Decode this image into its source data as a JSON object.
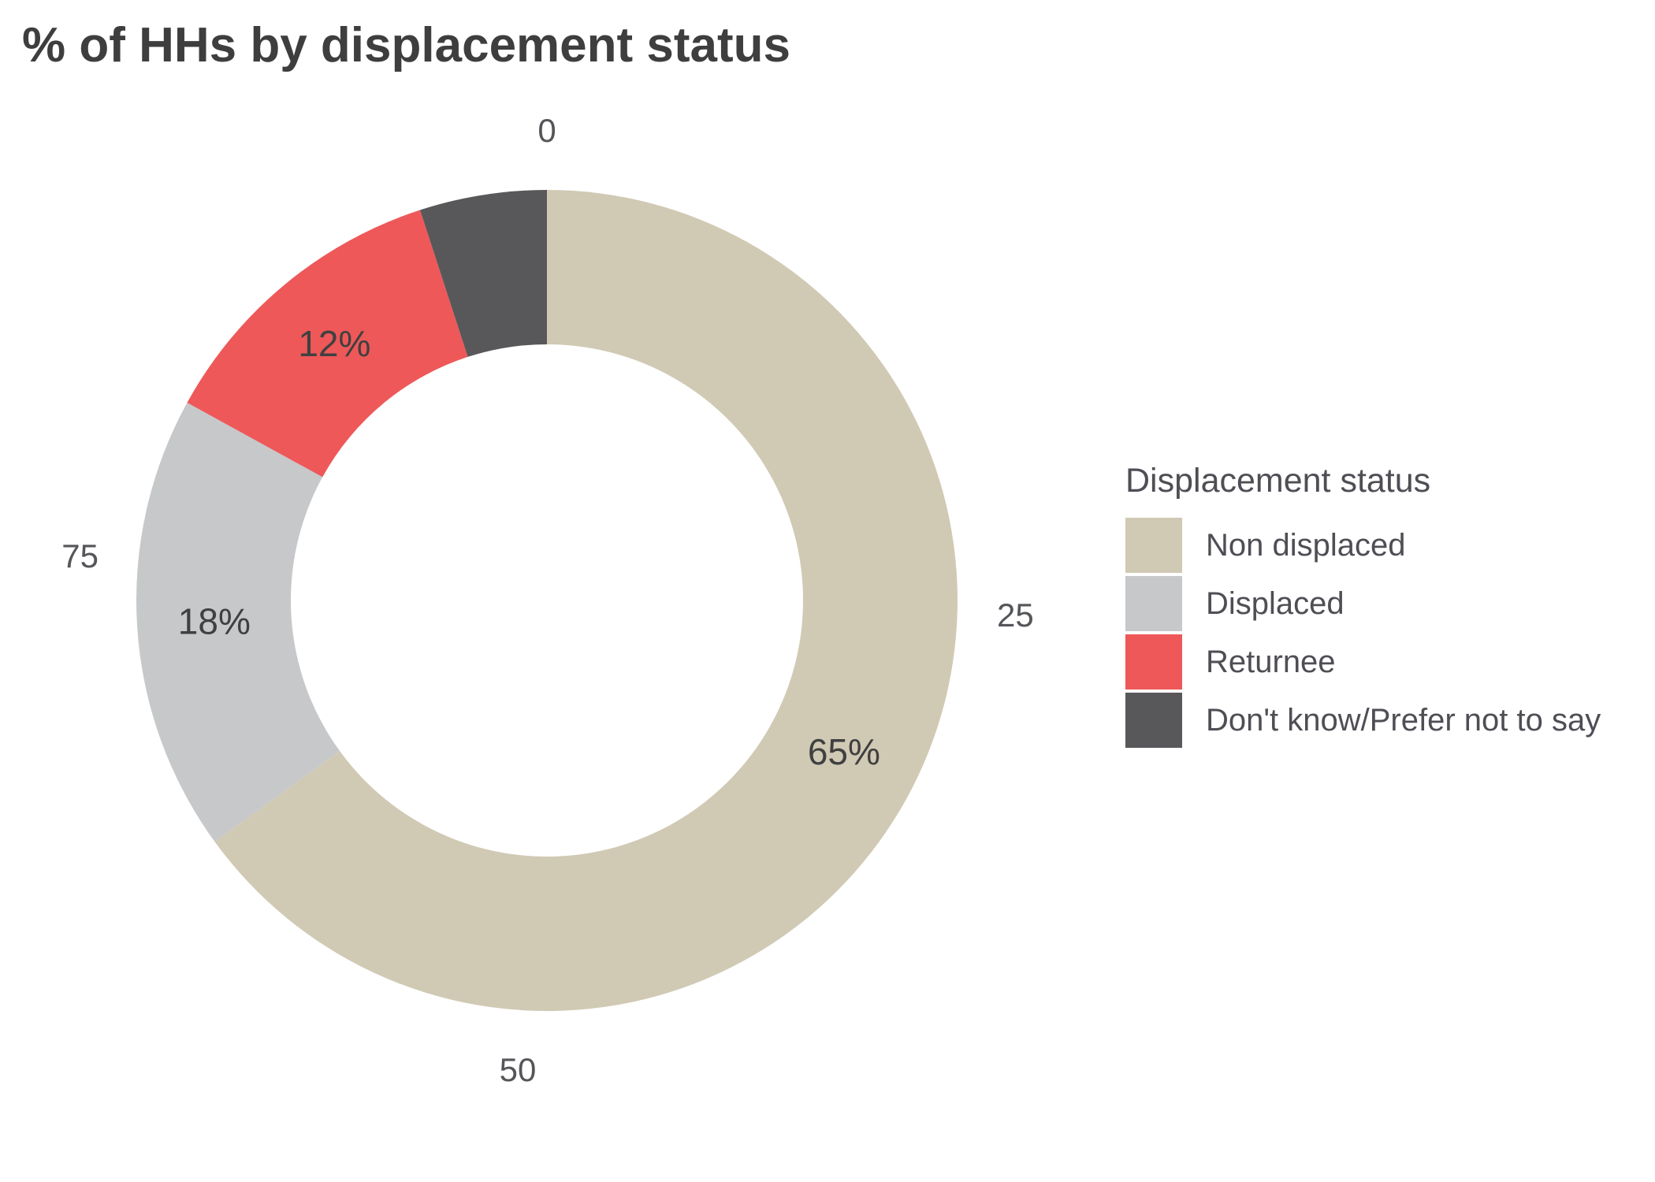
{
  "chart_data": {
    "type": "pie",
    "subtype": "donut",
    "title": "% of HHs by displacement status",
    "legend_title": "Displacement status",
    "legend_position": "right",
    "axis_range": [
      0,
      100
    ],
    "axis_ticks": [
      "0",
      "25",
      "50",
      "75"
    ],
    "start_angle_deg": 0,
    "direction": "clockwise",
    "slices": [
      {
        "name": "Non displaced",
        "value": 65,
        "label": "65%",
        "color": "#d0c9b4"
      },
      {
        "name": "Displaced",
        "value": 18,
        "label": "18%",
        "color": "#c7c8ca"
      },
      {
        "name": "Returnee",
        "value": 12,
        "label": "12%",
        "color": "#ee5859"
      },
      {
        "name": "Don't know/Prefer not to say",
        "value": 5,
        "label": "",
        "color": "#58585a"
      }
    ]
  }
}
